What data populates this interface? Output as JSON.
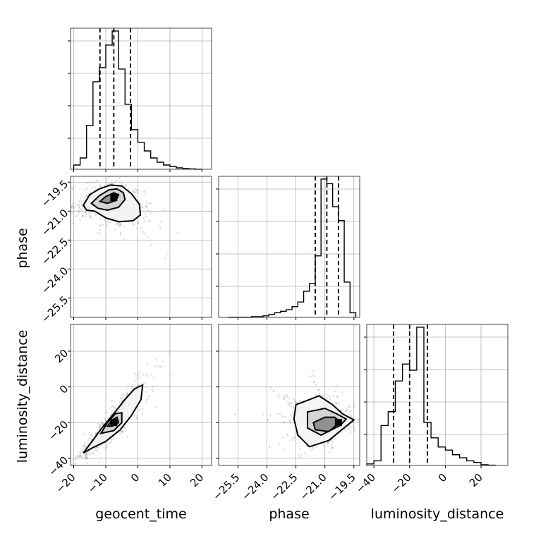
{
  "chart_data": {
    "type": "corner",
    "parameters": [
      "geocent_time",
      "phase",
      "luminosity_distance"
    ],
    "axis_labels": {
      "geocent_time": "geocent_time",
      "phase": "phase",
      "luminosity_distance": "luminosity_distance"
    },
    "ranges": {
      "geocent_time": [
        -21,
        23
      ],
      "phase": [
        -26.5,
        -19.2
      ],
      "luminosity_distance": [
        -44,
        35
      ]
    },
    "ticks": {
      "geocent_time": [
        -20,
        -10,
        0,
        10,
        20
      ],
      "phase": [
        -25.5,
        -24.0,
        -22.5,
        -21.0,
        -19.5
      ],
      "luminosity_distance": [
        -40,
        -20,
        0,
        20
      ]
    },
    "tick_labels": {
      "geocent_time": [
        "−20",
        "−10",
        "0",
        "10",
        "20"
      ],
      "phase": [
        "−25.5",
        "−24.0",
        "−22.5",
        "−21.0",
        "−19.5"
      ],
      "luminosity_distance": [
        "−40",
        "−20",
        "0",
        "20"
      ]
    },
    "quantiles": {
      "geocent_time": [
        -11.8,
        -7.5,
        -2.3
      ],
      "phase": [
        -21.5,
        -20.9,
        -20.3
      ],
      "luminosity_distance": [
        -29,
        -20,
        -10
      ]
    },
    "histograms": {
      "geocent_time": {
        "bin_edges": [
          -20,
          -18,
          -16,
          -14,
          -12,
          -10,
          -8,
          -6,
          -4,
          -2,
          0,
          2,
          4,
          6,
          8,
          10,
          12,
          14,
          16,
          18,
          20
        ],
        "counts": [
          3,
          8,
          31,
          62,
          72,
          88,
          98,
          71,
          46,
          28,
          19,
          13,
          8,
          5,
          3,
          2,
          1,
          0.5,
          0.3,
          0
        ]
      },
      "phase": {
        "bin_edges": [
          -26.0,
          -25.7,
          -25.4,
          -25.1,
          -24.8,
          -24.5,
          -24.2,
          -23.9,
          -23.6,
          -23.3,
          -23.0,
          -22.7,
          -22.4,
          -22.1,
          -21.8,
          -21.5,
          -21.2,
          -20.9,
          -20.6,
          -20.3,
          -20.0,
          -19.7,
          -19.4
        ],
        "counts": [
          0,
          0,
          0,
          0,
          0.5,
          0.5,
          1,
          2,
          3,
          4,
          5,
          7,
          10,
          17,
          22,
          40,
          90,
          87,
          72,
          63,
          23,
          3
        ]
      },
      "luminosity_distance": {
        "bin_edges": [
          -44,
          -40,
          -36,
          -32,
          -28,
          -24,
          -20,
          -16,
          -12,
          -8,
          -4,
          0,
          4,
          8,
          12,
          16,
          20,
          24,
          28
        ],
        "counts": [
          1,
          3,
          26,
          35,
          55,
          66,
          62,
          90,
          28,
          18,
          12,
          10,
          7,
          5,
          3,
          2,
          0.5,
          0.2
        ]
      }
    },
    "modes": {
      "geocent_time": -7.5,
      "phase": -20.3,
      "luminosity_distance": -20
    },
    "contours": {
      "geocent_time|phase": [
        [
          [
            -17,
            -20.7
          ],
          [
            -15,
            -20.15
          ],
          [
            -12,
            -19.85
          ],
          [
            -8.5,
            -19.65
          ],
          [
            -5,
            -19.7
          ],
          [
            -2,
            -20.1
          ],
          [
            0.5,
            -20.65
          ],
          [
            0.8,
            -21.2
          ],
          [
            -1.5,
            -21.5
          ],
          [
            -6,
            -21.55
          ],
          [
            -10,
            -21.35
          ],
          [
            -13.5,
            -21.0
          ],
          [
            -16,
            -20.95
          ],
          [
            -17,
            -20.7
          ]
        ],
        [
          [
            -14.5,
            -20.6
          ],
          [
            -12,
            -20.2
          ],
          [
            -9,
            -19.9
          ],
          [
            -6.5,
            -19.85
          ],
          [
            -4.5,
            -20.05
          ],
          [
            -4,
            -20.4
          ],
          [
            -6,
            -20.8
          ],
          [
            -9.5,
            -20.95
          ],
          [
            -12.5,
            -20.85
          ],
          [
            -14.5,
            -20.6
          ]
        ],
        [
          [
            -11.8,
            -20.5
          ],
          [
            -10,
            -20.25
          ],
          [
            -7.5,
            -20.05
          ],
          [
            -6,
            -20.15
          ],
          [
            -6.8,
            -20.45
          ],
          [
            -9.5,
            -20.6
          ],
          [
            -11.8,
            -20.5
          ]
        ]
      ],
      "geocent_time|luminosity_distance": [
        [
          [
            -17,
            -37
          ],
          [
            -14.5,
            -31
          ],
          [
            -11,
            -22.5
          ],
          [
            -7.5,
            -15
          ],
          [
            -4,
            -7
          ],
          [
            -1,
            -1
          ],
          [
            1.5,
            1
          ],
          [
            1,
            -7
          ],
          [
            -2,
            -16
          ],
          [
            -5.5,
            -24
          ],
          [
            -10,
            -30.5
          ],
          [
            -14,
            -34
          ],
          [
            -17,
            -37
          ]
        ],
        [
          [
            -11.5,
            -26
          ],
          [
            -9.5,
            -20
          ],
          [
            -7,
            -15
          ],
          [
            -5,
            -14.5
          ],
          [
            -5,
            -20
          ],
          [
            -7.5,
            -24.5
          ],
          [
            -11.5,
            -26
          ]
        ],
        [
          [
            -9.5,
            -22
          ],
          [
            -8,
            -18.5
          ],
          [
            -6.5,
            -17
          ],
          [
            -6,
            -20
          ],
          [
            -8,
            -22
          ],
          [
            -9.5,
            -22
          ]
        ]
      ],
      "phase|luminosity_distance": [
        [
          [
            -22.5,
            -10
          ],
          [
            -21.3,
            -5
          ],
          [
            -20.6,
            -10
          ],
          [
            -20.1,
            -15
          ],
          [
            -19.5,
            -18.5
          ],
          [
            -19.9,
            -22
          ],
          [
            -20.8,
            -30
          ],
          [
            -21.8,
            -33.5
          ],
          [
            -22.4,
            -27
          ],
          [
            -22.6,
            -18
          ],
          [
            -22.5,
            -10
          ]
        ],
        [
          [
            -21.9,
            -14
          ],
          [
            -21.0,
            -12
          ],
          [
            -20.4,
            -15
          ],
          [
            -19.9,
            -18
          ],
          [
            -20.2,
            -21.5
          ],
          [
            -21.2,
            -27
          ],
          [
            -21.9,
            -23
          ],
          [
            -21.9,
            -14
          ]
        ],
        [
          [
            -21.6,
            -20
          ],
          [
            -21.0,
            -17
          ],
          [
            -20.5,
            -17
          ],
          [
            -20.2,
            -19.5
          ],
          [
            -20.8,
            -25
          ],
          [
            -21.5,
            -24
          ],
          [
            -21.6,
            -20
          ]
        ]
      ]
    },
    "scatter_centers": {
      "geocent_time|phase": {
        "x": -7.5,
        "y": -20.4
      },
      "geocent_time|luminosity_distance": {
        "x": -7.5,
        "y": -20
      },
      "phase|luminosity_distance": {
        "x": -20.9,
        "y": -20
      }
    },
    "grid": true
  }
}
